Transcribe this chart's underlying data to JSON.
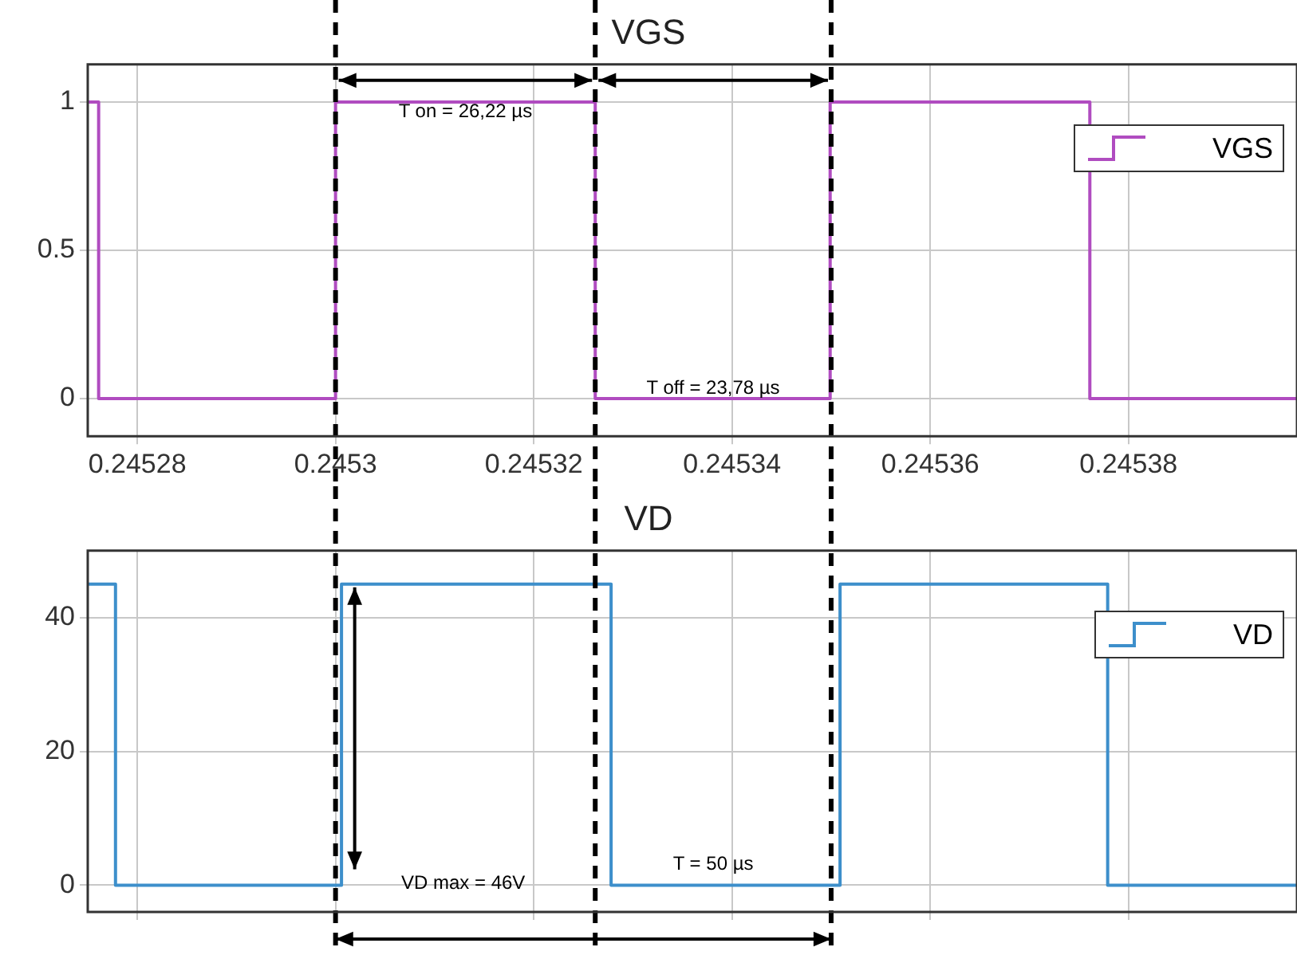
{
  "chart_data": [
    {
      "type": "step",
      "title": "VGS",
      "series": [
        {
          "name": "VGS",
          "color": "#b04cc0",
          "x": [
            0.245275,
            0.2452761,
            0.2453,
            0.2453262,
            0.2453499,
            0.2453761,
            0.245397
          ],
          "values": [
            1,
            0,
            1,
            0,
            1,
            0,
            0
          ]
        }
      ],
      "xlim": [
        0.245275,
        0.245397
      ],
      "xticks": [
        0.24528,
        0.2453,
        0.24532,
        0.24534,
        0.24536,
        0.24538
      ],
      "ylim": [
        -0.127,
        1.127
      ],
      "yticks": [
        0,
        0.5,
        1
      ],
      "grid": true,
      "legend": "top right",
      "marker": "none",
      "line_style": "solid",
      "ref_lines": [
        {
          "axis": "x",
          "value": 0.2453,
          "line_style": "dashed",
          "color": "#000000"
        },
        {
          "axis": "x",
          "value": 0.2453262,
          "line_style": "dashed",
          "color": "#000000"
        },
        {
          "axis": "x",
          "value": 0.24535,
          "line_style": "dashed",
          "color": "#000000"
        }
      ],
      "annotations": [
        "T on = 26,22 µs",
        "T off = 23,78 µs"
      ]
    },
    {
      "type": "step",
      "title": "VD",
      "series": [
        {
          "name": "VD",
          "color": "#3d8fcb",
          "x": [
            0.245275,
            0.2452778,
            0.2453006,
            0.2453278,
            0.2453509,
            0.2453779,
            0.245397
          ],
          "values": [
            45,
            0,
            45,
            0,
            45,
            0,
            0
          ]
        }
      ],
      "xlim": [
        0.245275,
        0.245397
      ],
      "xticks": [
        0.24528,
        0.2453,
        0.24532,
        0.24534,
        0.24536,
        0.24538
      ],
      "ylim": [
        -4,
        50
      ],
      "yticks": [
        0,
        20,
        40
      ],
      "tick_labels": "y",
      "grid": true,
      "legend": "top right",
      "marker": "none",
      "line_style": "solid",
      "ref_lines": [
        {
          "axis": "x",
          "value": 0.2453,
          "line_style": "dashed",
          "color": "#000000"
        },
        {
          "axis": "x",
          "value": 0.2453262,
          "line_style": "dashed",
          "color": "#000000"
        },
        {
          "axis": "x",
          "value": 0.24535,
          "line_style": "dashed",
          "color": "#000000"
        }
      ],
      "annotations": [
        "VD max = 46V",
        "T = 50 µs"
      ]
    }
  ]
}
